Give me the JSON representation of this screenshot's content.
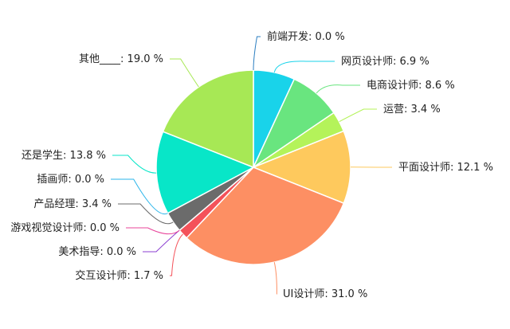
{
  "chart_data": {
    "type": "pie",
    "title": "",
    "unit": "%",
    "slices": [
      {
        "name": "前端开发",
        "value": 0.0,
        "label": "前端开发: 0.0 %",
        "color": "#2d7fc1"
      },
      {
        "name": "网页设计师",
        "value": 6.9,
        "label": "网页设计师: 6.9 %",
        "color": "#19d3ea"
      },
      {
        "name": "电商设计师",
        "value": 8.6,
        "label": "电商设计师: 8.6 %",
        "color": "#69e57f"
      },
      {
        "name": "运营",
        "value": 3.4,
        "label": "运营: 3.4 %",
        "color": "#b4f35a"
      },
      {
        "name": "平面设计师",
        "value": 12.1,
        "label": "平面设计师: 12.1 %",
        "color": "#fec95d"
      },
      {
        "name": "UI设计师",
        "value": 31.0,
        "label": "UI设计师: 31.0 %",
        "color": "#fd8f63"
      },
      {
        "name": "交互设计师",
        "value": 1.7,
        "label": "交互设计师: 1.7 %",
        "color": "#f4525a"
      },
      {
        "name": "美术指导",
        "value": 0.0,
        "label": "美术指导: 0.0 %",
        "color": "#8b3fd1"
      },
      {
        "name": "游戏视觉设计师",
        "value": 0.0,
        "label": "游戏视觉设计师: 0.0 %",
        "color": "#e8449a"
      },
      {
        "name": "产品经理",
        "value": 3.4,
        "label": "产品经理: 3.4 %",
        "color": "#6b6b6b"
      },
      {
        "name": "插画师",
        "value": 0.0,
        "label": "插画师: 0.0 %",
        "color": "#2ab5ea"
      },
      {
        "name": "还是学生",
        "value": 13.8,
        "label": "还是学生: 13.8 %",
        "color": "#08e6c8"
      },
      {
        "name": "其他____",
        "value": 19.0,
        "label": "其他____: 19.0 %",
        "color": "#a7e855"
      }
    ]
  }
}
